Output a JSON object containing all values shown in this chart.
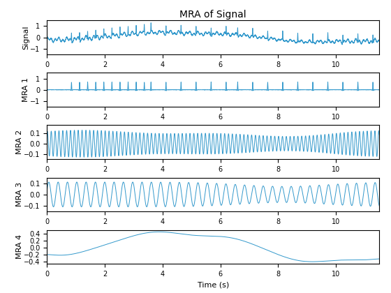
{
  "title": "MRA of Signal",
  "ylabels": [
    "Signal",
    "MRA 1",
    "MRA 2",
    "MRA 3",
    "MRA 4"
  ],
  "xlabel": "Time (s)",
  "xlim": [
    0,
    11.5
  ],
  "line_color": "#3399CC",
  "line_width": 0.7,
  "fs": 1000,
  "duration": 11.5,
  "background_color": "#ffffff",
  "title_fontsize": 10,
  "label_fontsize": 8,
  "tick_fontsize": 7
}
